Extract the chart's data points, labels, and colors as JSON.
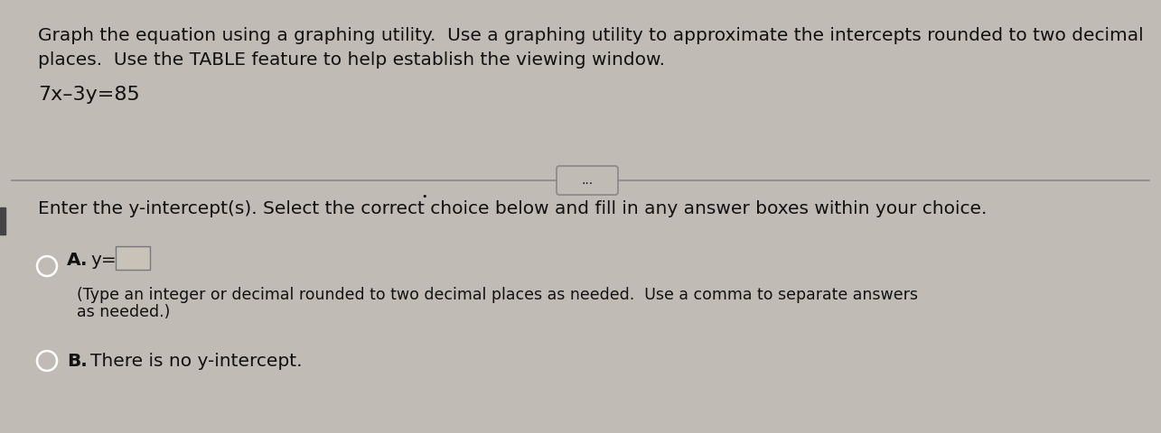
{
  "bg_color": "#c0bbb5",
  "text_color": "#111111",
  "title_line1": "Graph the equation using a graphing utility.  Use a graphing utility to approximate the intercepts rounded to two decimal",
  "title_line2": "places.  Use the TABLE feature to help establish the viewing window.",
  "equation": "7x–3y=85",
  "divider_color": "#888888",
  "dots_button_text": "...",
  "question_text": "Enter the y-intercept(s). Select the correct choice below and fill in any answer boxes within your choice.",
  "choice_A_label": "A.",
  "choice_A_eq": "y=",
  "choice_A_subtext_line1": "(Type an integer or decimal rounded to two decimal places as needed.  Use a comma to separate answers",
  "choice_A_subtext_line2": "as needed.)",
  "choice_B_label": "B.",
  "choice_B_text": "There is no y-intercept.",
  "box_fill": "#c8c2b8",
  "left_bar_color": "#444444",
  "font_size_main": 14.5,
  "font_size_equation": 16,
  "font_size_choices": 14.5,
  "font_size_sub": 12.5
}
